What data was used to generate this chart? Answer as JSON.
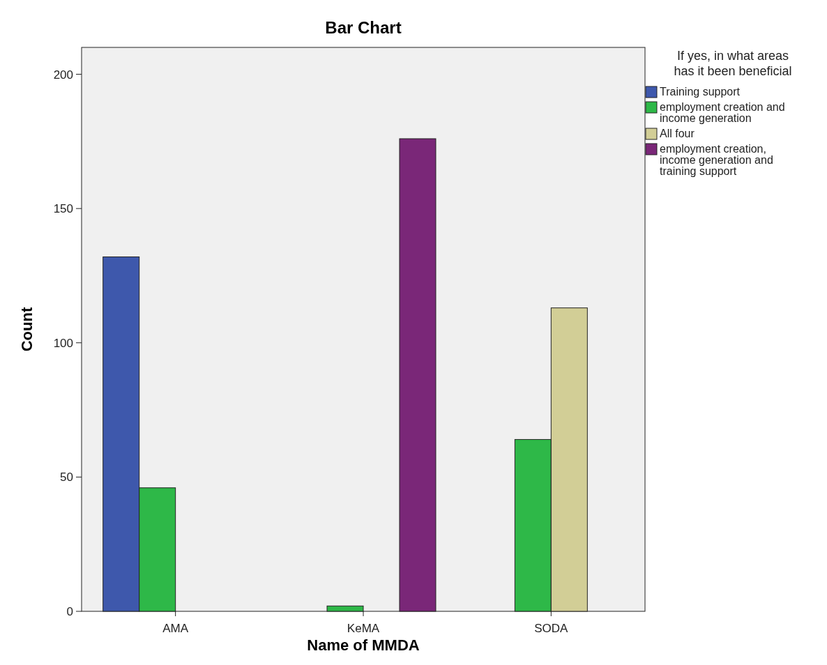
{
  "chart_data": {
    "type": "bar",
    "title": "Bar Chart",
    "xlabel": "Name of MMDA",
    "ylabel": "Count",
    "legend_title": "If yes, in what areas has it been beneficial",
    "categories": [
      "AMA",
      "KeMA",
      "SODA"
    ],
    "series": [
      {
        "name": "Training support",
        "color": "#3e58ac",
        "values": [
          132,
          null,
          null
        ]
      },
      {
        "name": "employment creation and income generation",
        "color": "#2eb848",
        "values": [
          46,
          2,
          64
        ]
      },
      {
        "name": "All four",
        "color": "#d2ce96",
        "values": [
          null,
          null,
          113
        ]
      },
      {
        "name": "employment creation, income generation and training support",
        "color": "#7a2778",
        "values": [
          null,
          176,
          null
        ]
      }
    ],
    "ylim": [
      0,
      210
    ],
    "yticks": [
      0,
      50,
      100,
      150,
      200
    ],
    "grid": false,
    "legend": "right"
  }
}
